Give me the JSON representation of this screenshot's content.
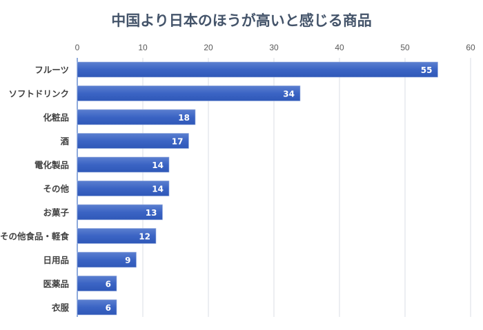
{
  "chart_data": {
    "type": "bar",
    "orientation": "horizontal",
    "title": "中国より日本のほうが高いと感じる商品",
    "categories": [
      "フルーツ",
      "ソフトドリンク",
      "化粧品",
      "酒",
      "電化製品",
      "その他",
      "お菓子",
      "その他食品・軽食",
      "日用品",
      "医薬品",
      "衣服"
    ],
    "values": [
      55,
      34,
      18,
      17,
      14,
      14,
      13,
      12,
      9,
      6,
      6
    ],
    "xlim": [
      0,
      60
    ],
    "x_ticks": [
      "0",
      "10",
      "20",
      "30",
      "40",
      "50",
      "60"
    ],
    "x_axis_position": "top",
    "grid": true,
    "data_labels": true,
    "bar_color": "#3b64c4",
    "title_color": "#44546a",
    "legend": "none"
  }
}
